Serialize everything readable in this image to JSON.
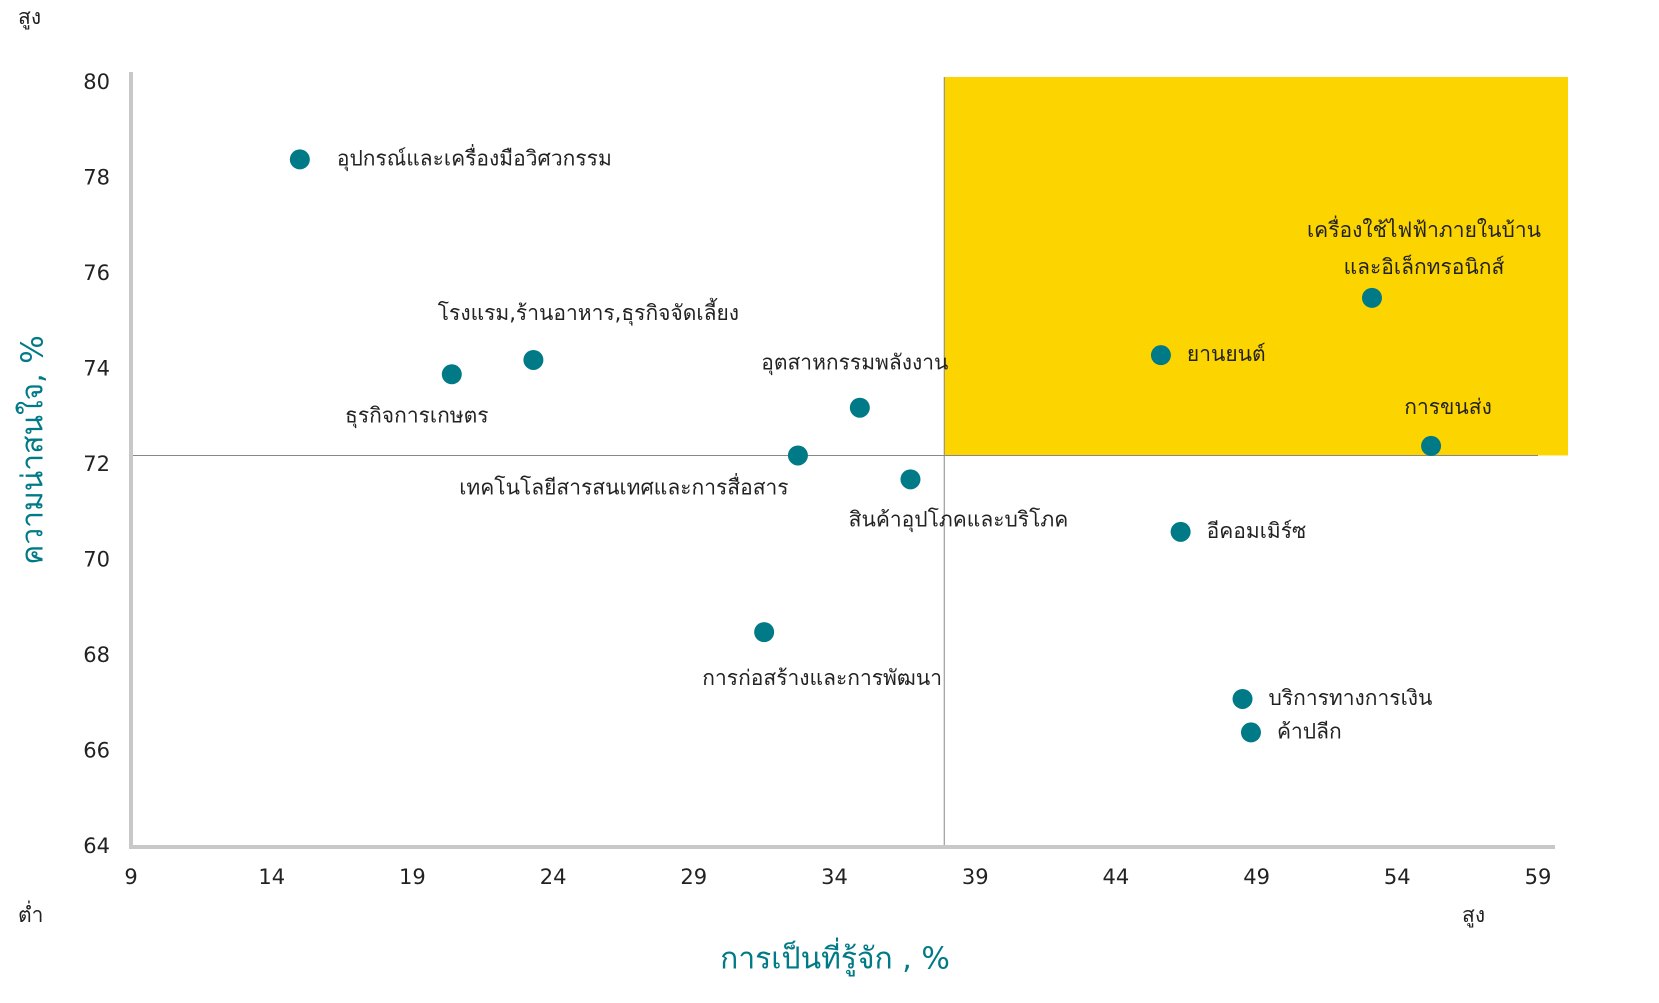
{
  "chart_data": {
    "type": "scatter",
    "y_label": "ความน่าสนใจ, %",
    "x_label": "การเป็นที่รู้จัก , %",
    "corner_labels": {
      "top_left": "สูง",
      "bottom_left": "ต่ำ",
      "bottom_right": "สูง"
    },
    "labels": [
      "อุปกรณ์และเครื่องมือวิศวกรรม",
      "ธุรกิจการเกษตร",
      "โรงแรม,ร้านอาหาร,ธุรกิจจัดเลี้ยง",
      "อุตสาหกรรมพลังงาน",
      "เทคโนโลยีสารสนเทศและการสื่อสาร",
      "สินค้าอุปโภคและบริโภค",
      "การก่อสร้างและการพัฒนา",
      "ยานยนต์",
      [
        "เครื่องใช้ไฟฟ้าภายในบ้าน",
        "และอิเล็กทรอนิกส์"
      ],
      "การขนส่ง",
      "อีคอมเมิร์ซ",
      "บริการทางการเงิน",
      "ค้าปลีก"
    ],
    "x": [
      15.0,
      20.4,
      23.3,
      34.9,
      32.7,
      36.7,
      31.5,
      45.6,
      53.1,
      55.2,
      46.3,
      48.5,
      48.8
    ],
    "y": [
      78.4,
      73.9,
      74.2,
      73.2,
      72.2,
      71.7,
      68.5,
      74.3,
      75.5,
      72.4,
      70.6,
      67.1,
      66.4
    ],
    "color": "#007a87",
    "highlight_color": "#fcd500",
    "x_ref": 37.9,
    "y_ref": 72.2,
    "xlim": [
      9,
      59
    ],
    "xticks": [
      9,
      14,
      19,
      24,
      29,
      34,
      39,
      44,
      49,
      54,
      59
    ],
    "ylim": [
      64,
      80
    ],
    "yticks": [
      64,
      66,
      68,
      70,
      72,
      74,
      76,
      78,
      80
    ]
  }
}
